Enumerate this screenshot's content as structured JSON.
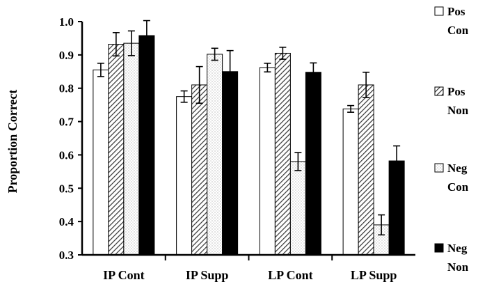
{
  "chart_data": {
    "type": "bar",
    "ylabel": "Proportion Correct",
    "ylim": [
      0.3,
      1.0
    ],
    "yticks": [
      "0.3",
      "0.4",
      "0.5",
      "0.6",
      "0.7",
      "0.8",
      "0.9",
      "1.0"
    ],
    "categories": [
      "IP Cont",
      "IP Supp",
      "LP Cont",
      "LP Supp"
    ],
    "series": [
      {
        "name_line1": "Pos",
        "name_line2": "Con",
        "fill": "white",
        "values": [
          0.855,
          0.775,
          0.862,
          0.738
        ],
        "errors": [
          0.02,
          0.017,
          0.013,
          0.01
        ]
      },
      {
        "name_line1": "Pos",
        "name_line2": "Non",
        "fill": "hatched",
        "values": [
          0.932,
          0.81,
          0.905,
          0.81
        ],
        "errors": [
          0.035,
          0.055,
          0.018,
          0.038
        ]
      },
      {
        "name_line1": "Neg",
        "name_line2": "Con",
        "fill": "dotted",
        "values": [
          0.935,
          0.902,
          0.58,
          0.39
        ],
        "errors": [
          0.037,
          0.018,
          0.027,
          0.03
        ]
      },
      {
        "name_line1": "Neg",
        "name_line2": "Non",
        "fill": "black",
        "values": [
          0.958,
          0.85,
          0.848,
          0.582
        ],
        "errors": [
          0.045,
          0.063,
          0.028,
          0.045
        ]
      }
    ],
    "legend_position": "right"
  }
}
